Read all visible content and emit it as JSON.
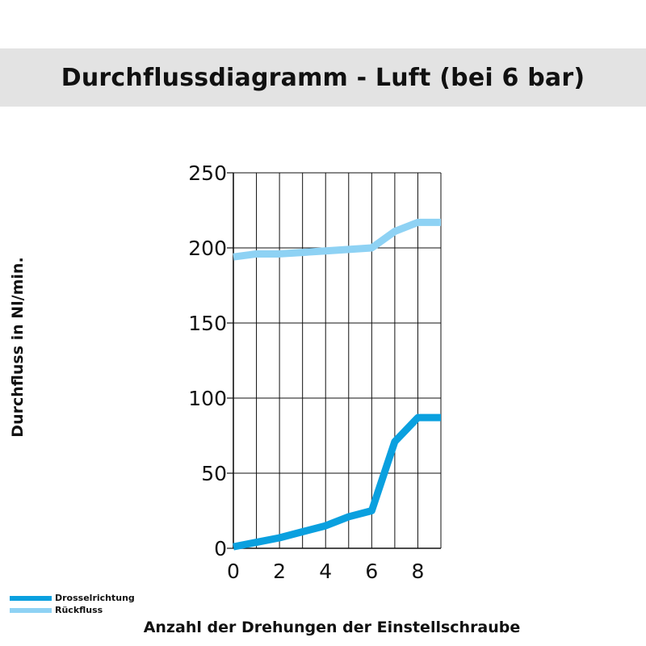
{
  "title": "Durchflussdiagramm - Luft (bei 6 bar)",
  "colors": {
    "drossel": "#0aa0df",
    "rueck": "#8ed2f4",
    "title_bg": "#e3e3e3",
    "grid": "#111111"
  },
  "legend": [
    {
      "label": "Drosselrichtung",
      "color": "#0aa0df"
    },
    {
      "label": "Rückfluss",
      "color": "#8ed2f4"
    }
  ],
  "chart_data": {
    "type": "line",
    "title": "Durchflussdiagramm - Luft (bei 6 bar)",
    "xlabel": "Anzahl der Drehungen der Einstellschraube",
    "ylabel": "Durchfluss in Nl/min.",
    "xlim": [
      0,
      9
    ],
    "ylim": [
      0,
      250
    ],
    "xticks": [
      0,
      2,
      4,
      6,
      8
    ],
    "yticks": [
      0,
      50,
      100,
      150,
      200,
      250
    ],
    "grid": true,
    "legend_position": "bottom-left",
    "series": [
      {
        "name": "Drosselrichtung",
        "color": "#0aa0df",
        "x": [
          0,
          1,
          2,
          3,
          4,
          5,
          6,
          7,
          8,
          9
        ],
        "y": [
          1,
          4,
          7,
          11,
          15,
          21,
          25,
          71,
          87,
          87
        ]
      },
      {
        "name": "Rückfluss",
        "color": "#8ed2f4",
        "x": [
          0,
          1,
          2,
          3,
          4,
          5,
          6,
          7,
          8,
          9
        ],
        "y": [
          194,
          196,
          196,
          197,
          198,
          199,
          200,
          211,
          217,
          217
        ]
      }
    ]
  }
}
